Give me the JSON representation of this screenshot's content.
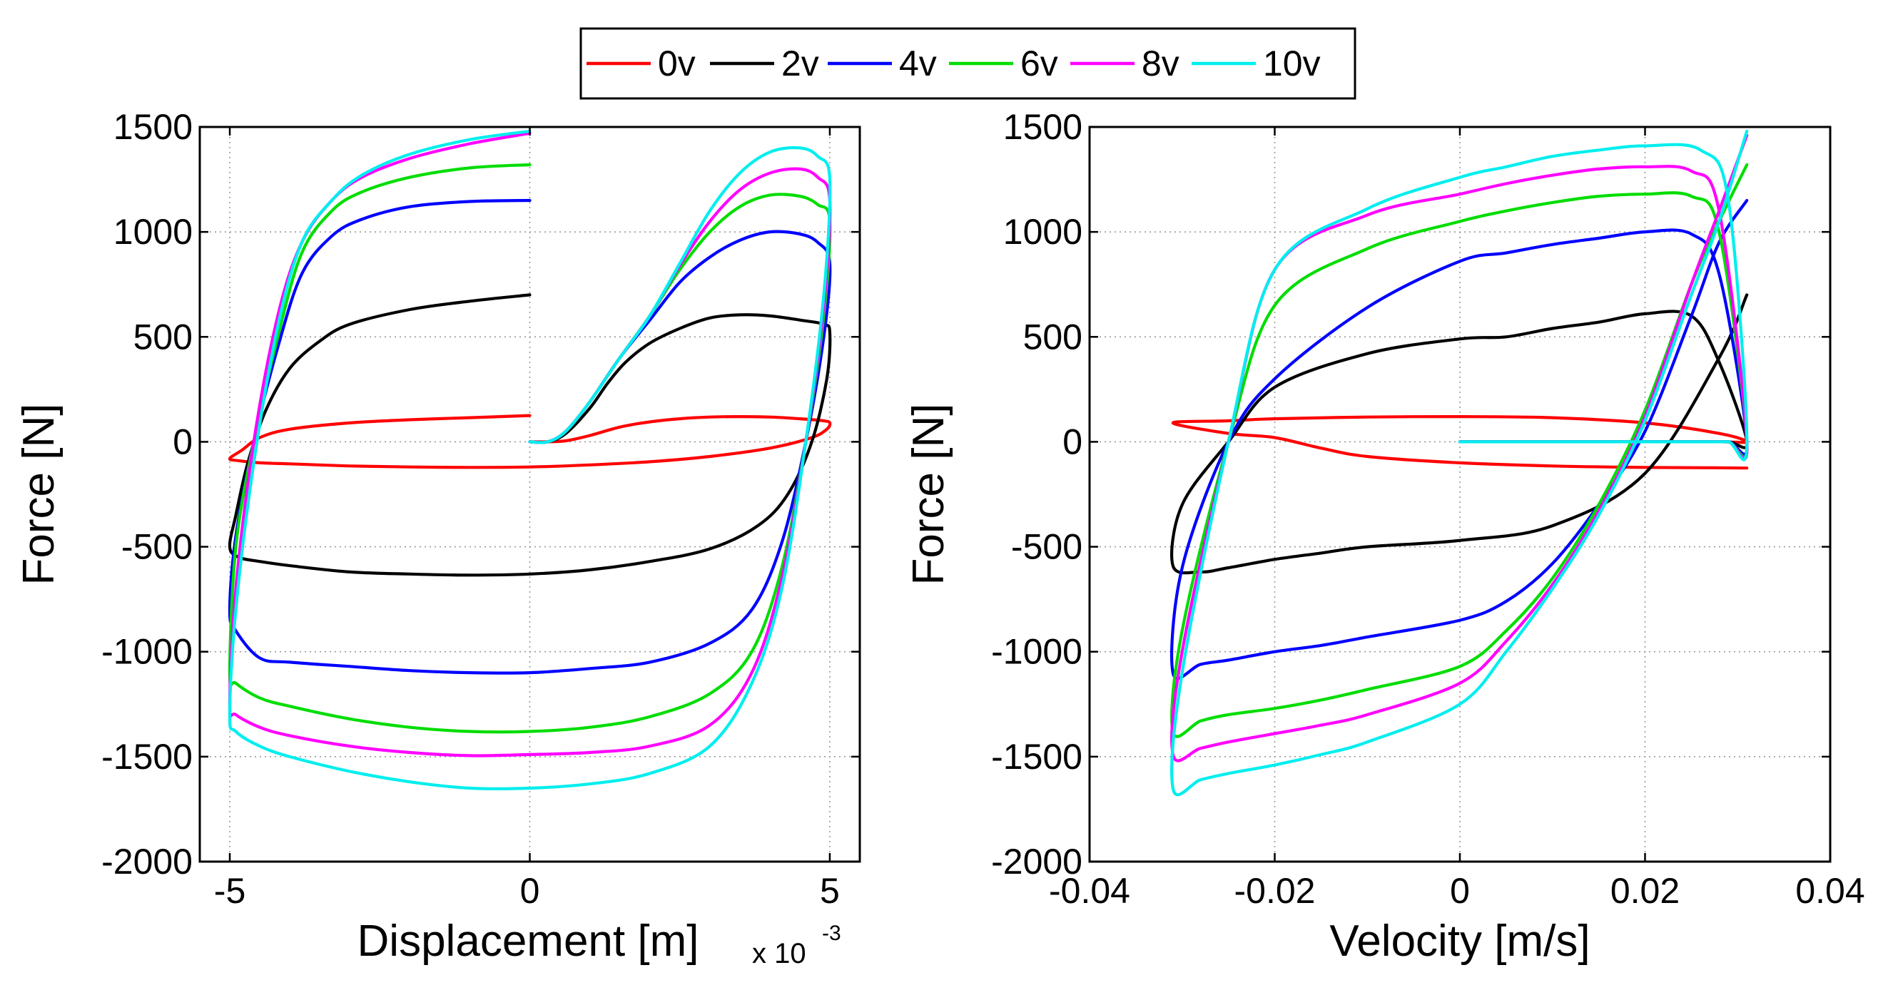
{
  "legend": {
    "placement": "top-center",
    "entries": [
      {
        "label": "0v",
        "color": "#ff0000"
      },
      {
        "label": "2v",
        "color": "#000000"
      },
      {
        "label": "4v",
        "color": "#0000ff"
      },
      {
        "label": "6v",
        "color": "#00dd00"
      },
      {
        "label": "8v",
        "color": "#ff00ff"
      },
      {
        "label": "10v",
        "color": "#00eeee"
      }
    ]
  },
  "chart_data": [
    {
      "type": "line",
      "title": "",
      "xlabel": "Displacement [m]",
      "ylabel": "Force [N]",
      "x_multiplier_text": "x 10",
      "x_multiplier_exponent": "-3",
      "x_multiplier": 0.001,
      "xlim": [
        -5.5,
        5.5
      ],
      "ylim": [
        -2000,
        1500
      ],
      "xticks": [
        -5,
        0,
        5
      ],
      "xtick_labels": [
        "-5",
        "0",
        "5"
      ],
      "yticks": [
        -2000,
        -1500,
        -1000,
        -500,
        0,
        500,
        1000,
        1500
      ],
      "ytick_labels": [
        "-2000",
        "-1500",
        "-1000",
        "-500",
        "0",
        "500",
        "1000",
        "1500"
      ],
      "grid": true,
      "series": [
        {
          "name": "0v",
          "color": "#ff0000",
          "x": [
            0,
            0.3,
            0.6,
            1,
            1.5,
            2,
            2.5,
            3,
            3.5,
            4,
            4.5,
            4.9,
            5,
            4.95,
            4.7,
            4,
            3,
            2,
            1,
            0,
            -1,
            -2,
            -3,
            -4,
            -4.5,
            -4.85,
            -5,
            -4.8,
            -4.5,
            -4,
            -3,
            -2,
            -1,
            0
          ],
          "y": [
            0,
            0,
            5,
            30,
            70,
            95,
            110,
            118,
            120,
            118,
            110,
            100,
            90,
            60,
            20,
            -30,
            -70,
            -95,
            -110,
            -120,
            -122,
            -120,
            -115,
            -105,
            -100,
            -90,
            -80,
            -40,
            20,
            60,
            90,
            105,
            115,
            125
          ]
        },
        {
          "name": "2v",
          "color": "#000000",
          "x": [
            0,
            0.3,
            0.6,
            1,
            1.3,
            1.6,
            2,
            2.5,
            3,
            3.5,
            4,
            4.5,
            4.9,
            5,
            4.95,
            4.7,
            4.3,
            3.8,
            3,
            2,
            1,
            0,
            -1,
            -2,
            -3,
            -4,
            -4.5,
            -4.85,
            -5,
            -4.9,
            -4.7,
            -4.4,
            -4,
            -3.5,
            -3,
            -2,
            -1,
            0
          ],
          "y": [
            0,
            0,
            40,
            160,
            280,
            380,
            470,
            540,
            590,
            605,
            600,
            580,
            560,
            520,
            300,
            0,
            -250,
            -400,
            -510,
            -570,
            -610,
            -630,
            -635,
            -630,
            -620,
            -590,
            -570,
            -550,
            -500,
            -350,
            -100,
            150,
            350,
            480,
            560,
            630,
            670,
            700
          ]
        },
        {
          "name": "4v",
          "color": "#0000ff",
          "x": [
            0,
            0.3,
            0.6,
            1,
            1.5,
            2,
            2.5,
            3,
            3.5,
            4,
            4.5,
            4.8,
            5,
            4.9,
            4.6,
            4.2,
            3.7,
            3,
            2,
            1,
            0,
            -1,
            -2,
            -3,
            -4,
            -4.5,
            -4.9,
            -5,
            -4.9,
            -4.6,
            -4.2,
            -3.8,
            -3.3,
            -2.8,
            -2,
            -1,
            0
          ],
          "y": [
            0,
            0,
            50,
            190,
            400,
            580,
            760,
            880,
            960,
            1000,
            990,
            950,
            850,
            500,
            0,
            -480,
            -800,
            -960,
            -1050,
            -1080,
            -1100,
            -1100,
            -1090,
            -1070,
            -1050,
            -1030,
            -900,
            -800,
            -450,
            0,
            450,
            800,
            980,
            1060,
            1120,
            1145,
            1150
          ]
        },
        {
          "name": "6v",
          "color": "#00dd00",
          "x": [
            0,
            0.3,
            0.6,
            1,
            1.5,
            2,
            2.5,
            3,
            3.5,
            4,
            4.5,
            4.8,
            5,
            4.9,
            4.6,
            4.2,
            3.7,
            3,
            2,
            1,
            0,
            -1,
            -2,
            -3,
            -4,
            -4.5,
            -4.9,
            -5,
            -4.9,
            -4.6,
            -4.2,
            -3.8,
            -3.3,
            -2.8,
            -2,
            -1,
            0
          ],
          "y": [
            0,
            0,
            50,
            190,
            400,
            600,
            820,
            1000,
            1120,
            1175,
            1170,
            1130,
            1050,
            600,
            0,
            -600,
            -1000,
            -1200,
            -1310,
            -1360,
            -1380,
            -1380,
            -1360,
            -1320,
            -1260,
            -1220,
            -1150,
            -1100,
            -500,
            0,
            500,
            900,
            1100,
            1190,
            1260,
            1305,
            1320
          ]
        },
        {
          "name": "8v",
          "color": "#ff00ff",
          "x": [
            0,
            0.3,
            0.6,
            1,
            1.5,
            2,
            2.5,
            3,
            3.5,
            4,
            4.5,
            4.8,
            5,
            4.9,
            4.6,
            4.2,
            3.7,
            3,
            2,
            1,
            0,
            -1,
            -2,
            -3,
            -4,
            -4.5,
            -4.9,
            -5,
            -4.9,
            -4.6,
            -4.2,
            -3.8,
            -3.3,
            -2.8,
            -2,
            -1,
            0
          ],
          "y": [
            0,
            0,
            50,
            190,
            400,
            600,
            840,
            1050,
            1200,
            1280,
            1300,
            1260,
            1150,
            650,
            0,
            -650,
            -1100,
            -1350,
            -1450,
            -1480,
            -1490,
            -1495,
            -1480,
            -1450,
            -1400,
            -1360,
            -1300,
            -1250,
            -700,
            0,
            600,
            950,
            1150,
            1260,
            1350,
            1420,
            1470
          ]
        },
        {
          "name": "10v",
          "color": "#00eeee",
          "x": [
            0,
            0.3,
            0.6,
            1,
            1.5,
            2,
            2.5,
            3,
            3.5,
            4,
            4.5,
            4.8,
            5,
            4.9,
            4.6,
            4.2,
            3.7,
            3,
            2,
            1,
            0,
            -1,
            -2,
            -3,
            -4,
            -4.5,
            -4.9,
            -5,
            -4.9,
            -4.6,
            -4.2,
            -3.8,
            -3.3,
            -2.8,
            -2,
            -1,
            0
          ],
          "y": [
            0,
            0,
            50,
            190,
            400,
            600,
            850,
            1100,
            1280,
            1380,
            1400,
            1360,
            1250,
            700,
            0,
            -700,
            -1150,
            -1450,
            -1580,
            -1630,
            -1650,
            -1650,
            -1620,
            -1570,
            -1500,
            -1450,
            -1380,
            -1300,
            -800,
            -100,
            550,
            950,
            1150,
            1270,
            1370,
            1440,
            1480
          ]
        }
      ]
    },
    {
      "type": "line",
      "title": "",
      "xlabel": "Velocity [m/s]",
      "ylabel": "Force [N]",
      "xlim": [
        -0.04,
        0.04
      ],
      "ylim": [
        -2000,
        1500
      ],
      "xticks": [
        -0.04,
        -0.02,
        0,
        0.02,
        0.04
      ],
      "xtick_labels": [
        "-0.04",
        "-0.02",
        "0",
        "0.02",
        "0.04"
      ],
      "yticks": [
        -2000,
        -1500,
        -1000,
        -500,
        0,
        500,
        1000,
        1500
      ],
      "ytick_labels": [
        "-2000",
        "-1500",
        "-1000",
        "-500",
        "0",
        "500",
        "1000",
        "1500"
      ],
      "grid": true,
      "series": [
        {
          "name": "0v",
          "color": "#ff0000",
          "x": [
            0,
            0.01,
            0.02,
            0.028,
            0.031,
            0.028,
            0.02,
            0.01,
            0,
            -0.01,
            -0.02,
            -0.025,
            -0.031,
            -0.025,
            -0.02,
            -0.015,
            -0.01,
            0,
            0.01,
            0.02,
            0.028,
            0.031
          ],
          "y": [
            0,
            0,
            0,
            0,
            0,
            40,
            90,
            115,
            120,
            118,
            110,
            100,
            90,
            40,
            20,
            -30,
            -70,
            -100,
            -115,
            -122,
            -124,
            -125
          ]
        },
        {
          "name": "2v",
          "color": "#000000",
          "x": [
            0,
            0.01,
            0.02,
            0.026,
            0.029,
            0.031,
            0.028,
            0.025,
            0.02,
            0.015,
            0.01,
            0.005,
            0,
            -0.01,
            -0.02,
            -0.025,
            -0.03,
            -0.031,
            -0.028,
            -0.025,
            -0.02,
            -0.015,
            -0.01,
            0,
            0.01,
            0.02,
            0.028,
            0.031
          ],
          "y": [
            0,
            0,
            0,
            0,
            0,
            0,
            380,
            600,
            610,
            570,
            540,
            500,
            490,
            420,
            260,
            0,
            -300,
            -590,
            -620,
            -600,
            -560,
            -530,
            -500,
            -470,
            -400,
            -150,
            400,
            700
          ]
        },
        {
          "name": "4v",
          "color": "#0000ff",
          "x": [
            0,
            0.01,
            0.02,
            0.026,
            0.029,
            0.031,
            0.028,
            0.025,
            0.02,
            0.015,
            0.01,
            0.005,
            0,
            -0.01,
            -0.02,
            -0.025,
            -0.03,
            -0.031,
            -0.028,
            -0.025,
            -0.02,
            -0.015,
            -0.01,
            0,
            0.005,
            0.01,
            0.015,
            0.02,
            0.025,
            0.028,
            0.031
          ],
          "y": [
            0,
            0,
            0,
            0,
            0,
            0,
            800,
            990,
            1000,
            970,
            940,
            900,
            860,
            640,
            300,
            0,
            -600,
            -1100,
            -1060,
            -1040,
            -1000,
            -970,
            -930,
            -850,
            -760,
            -580,
            -300,
            50,
            600,
            950,
            1150
          ]
        },
        {
          "name": "6v",
          "color": "#00dd00",
          "x": [
            0,
            0.01,
            0.02,
            0.026,
            0.029,
            0.031,
            0.028,
            0.025,
            0.02,
            0.015,
            0.01,
            0.005,
            0,
            -0.01,
            -0.02,
            -0.025,
            -0.03,
            -0.031,
            -0.028,
            -0.025,
            -0.02,
            -0.015,
            -0.01,
            0,
            0.005,
            0.01,
            0.015,
            0.02,
            0.025,
            0.028,
            0.031
          ],
          "y": [
            0,
            0,
            0,
            0,
            0,
            0,
            1000,
            1170,
            1180,
            1170,
            1140,
            1100,
            1050,
            920,
            650,
            0,
            -900,
            -1380,
            -1330,
            -1300,
            -1270,
            -1230,
            -1180,
            -1070,
            -900,
            -650,
            -300,
            150,
            750,
            1050,
            1320
          ]
        },
        {
          "name": "8v",
          "color": "#ff00ff",
          "x": [
            0,
            0.01,
            0.02,
            0.026,
            0.029,
            0.031,
            0.028,
            0.025,
            0.02,
            0.015,
            0.01,
            0.005,
            0,
            -0.01,
            -0.02,
            -0.025,
            -0.03,
            -0.031,
            -0.028,
            -0.025,
            -0.02,
            -0.015,
            -0.01,
            0,
            0.005,
            0.01,
            0.015,
            0.02,
            0.025,
            0.028,
            0.031
          ],
          "y": [
            0,
            0,
            0,
            0,
            0,
            0,
            1100,
            1290,
            1310,
            1300,
            1270,
            1230,
            1180,
            1080,
            820,
            0,
            -1000,
            -1490,
            -1460,
            -1430,
            -1390,
            -1350,
            -1300,
            -1150,
            -950,
            -680,
            -330,
            120,
            750,
            1100,
            1460
          ]
        },
        {
          "name": "10v",
          "color": "#00eeee",
          "x": [
            0,
            0.01,
            0.02,
            0.026,
            0.029,
            0.031,
            0.029,
            0.026,
            0.02,
            0.015,
            0.01,
            0.005,
            0,
            -0.01,
            -0.02,
            -0.025,
            -0.03,
            -0.031,
            -0.028,
            -0.025,
            -0.02,
            -0.015,
            -0.01,
            0,
            0.005,
            0.01,
            0.015,
            0.02,
            0.025,
            0.028,
            0.031
          ],
          "y": [
            0,
            0,
            0,
            0,
            0,
            0,
            1150,
            1390,
            1410,
            1390,
            1360,
            1310,
            1260,
            1110,
            820,
            0,
            -1100,
            -1650,
            -1610,
            -1580,
            -1540,
            -1490,
            -1430,
            -1250,
            -1000,
            -700,
            -350,
            100,
            700,
            1050,
            1480
          ]
        }
      ]
    }
  ]
}
